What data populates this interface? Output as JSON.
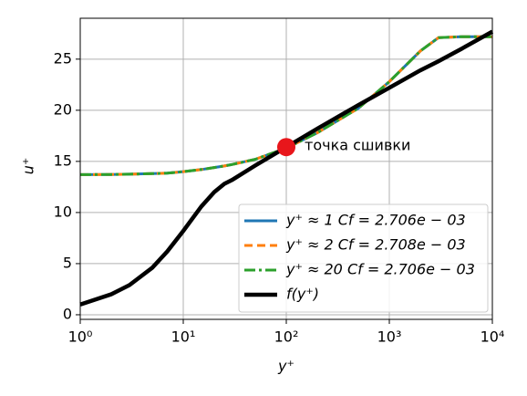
{
  "chart_data": {
    "type": "line",
    "xlabel": "y⁺",
    "ylabel": "u⁺",
    "x": [
      1,
      2,
      3,
      5,
      7,
      10,
      15,
      20,
      25,
      30,
      50,
      100,
      200,
      500,
      1000,
      2000,
      3000,
      5000,
      10000
    ],
    "series": [
      {
        "name": "y⁺ ≈ 1 Cf = 2.706e − 03",
        "color": "#1f77b4",
        "linestyle": "solid",
        "linewidth": 3,
        "values": [
          13.7,
          13.72,
          13.75,
          13.8,
          13.85,
          14.0,
          14.2,
          14.4,
          14.55,
          14.7,
          15.2,
          16.3,
          17.8,
          20.2,
          22.8,
          25.8,
          27.1,
          27.2,
          27.2
        ]
      },
      {
        "name": "y⁺ ≈ 2 Cf = 2.708e − 03",
        "color": "#ff7f0e",
        "linestyle": "dashed",
        "linewidth": 3,
        "values": [
          13.7,
          13.72,
          13.75,
          13.8,
          13.85,
          14.0,
          14.2,
          14.4,
          14.55,
          14.7,
          15.2,
          16.3,
          17.8,
          20.2,
          22.8,
          25.8,
          27.1,
          27.2,
          27.2
        ]
      },
      {
        "name": "y⁺ ≈ 20 Cf = 2.706e − 03",
        "color": "#2ca02c",
        "linestyle": "dashdot",
        "linewidth": 3,
        "values": [
          13.7,
          13.72,
          13.75,
          13.8,
          13.85,
          14.0,
          14.2,
          14.4,
          14.55,
          14.7,
          15.2,
          16.3,
          17.8,
          20.2,
          22.8,
          25.8,
          27.1,
          27.2,
          27.2
        ]
      },
      {
        "name": "f(y⁺)",
        "color": "#000000",
        "linestyle": "solid",
        "linewidth": 4.5,
        "values": [
          1.0,
          2.0,
          2.9,
          4.6,
          6.2,
          8.2,
          10.6,
          12.0,
          12.8,
          13.2,
          14.6,
          16.4,
          18.2,
          20.5,
          22.2,
          23.9,
          24.8,
          26.0,
          27.7
        ]
      }
    ],
    "annotation": {
      "text": "точка сшивки",
      "x": 100,
      "y": 16.4,
      "color": "#e8161b"
    },
    "xscale": "log",
    "xlim": [
      1,
      10000
    ],
    "xticks": [
      {
        "value": 1,
        "label": "10⁰"
      },
      {
        "value": 10,
        "label": "10¹"
      },
      {
        "value": 100,
        "label": "10²"
      },
      {
        "value": 1000,
        "label": "10³"
      },
      {
        "value": 10000,
        "label": "10⁴"
      }
    ],
    "ylim": [
      -0.45,
      29.0
    ],
    "yticks": [
      0,
      5,
      10,
      15,
      20,
      25
    ],
    "grid": true,
    "legend": "lower right"
  }
}
